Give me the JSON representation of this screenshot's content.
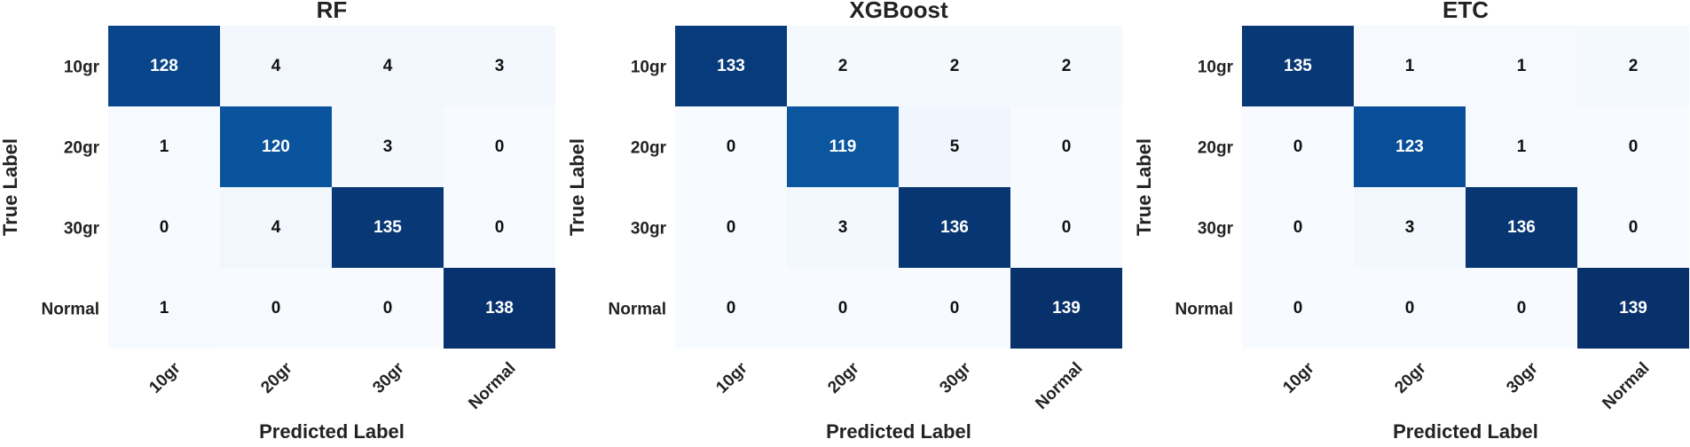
{
  "chart_data": [
    {
      "type": "heatmap",
      "title": "RF",
      "xlabel": "Predicted Label",
      "ylabel": "True Label",
      "x_categories": [
        "10gr",
        "20gr",
        "30gr",
        "Normal"
      ],
      "y_categories": [
        "10gr",
        "20gr",
        "30gr",
        "Normal"
      ],
      "values": [
        [
          128,
          4,
          4,
          3
        ],
        [
          1,
          120,
          3,
          0
        ],
        [
          0,
          4,
          135,
          0
        ],
        [
          1,
          0,
          0,
          138
        ]
      ],
      "colormap": "Blues",
      "vmin": 0,
      "vmax": 139
    },
    {
      "type": "heatmap",
      "title": "XGBoost",
      "xlabel": "Predicted Label",
      "ylabel": "True Label",
      "x_categories": [
        "10gr",
        "20gr",
        "30gr",
        "Normal"
      ],
      "y_categories": [
        "10gr",
        "20gr",
        "30gr",
        "Normal"
      ],
      "values": [
        [
          133,
          2,
          2,
          2
        ],
        [
          0,
          119,
          5,
          0
        ],
        [
          0,
          3,
          136,
          0
        ],
        [
          0,
          0,
          0,
          139
        ]
      ],
      "colormap": "Blues",
      "vmin": 0,
      "vmax": 139
    },
    {
      "type": "heatmap",
      "title": "ETC",
      "xlabel": "Predicted Label",
      "ylabel": "True Label",
      "x_categories": [
        "10gr",
        "20gr",
        "30gr",
        "Normal"
      ],
      "y_categories": [
        "10gr",
        "20gr",
        "30gr",
        "Normal"
      ],
      "values": [
        [
          135,
          1,
          1,
          2
        ],
        [
          0,
          123,
          1,
          0
        ],
        [
          0,
          3,
          136,
          0
        ],
        [
          0,
          0,
          0,
          139
        ]
      ],
      "colormap": "Blues",
      "vmin": 0,
      "vmax": 139
    }
  ]
}
